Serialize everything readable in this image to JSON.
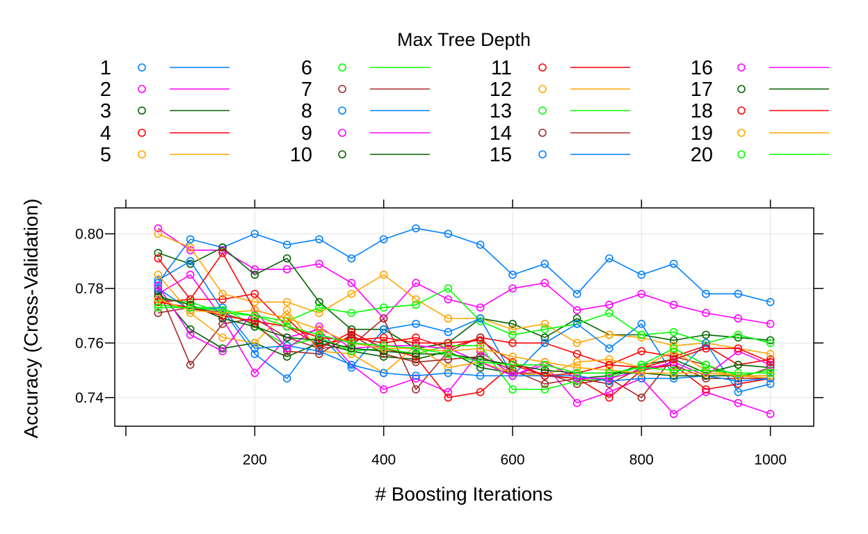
{
  "chart_data": {
    "type": "line",
    "legend_title": "Max Tree Depth",
    "xlabel": "# Boosting Iterations",
    "ylabel": "Accuracy (Cross-Validation)",
    "xlim": [
      0,
      1050
    ],
    "ylim": [
      0.7295,
      0.8095
    ],
    "xticks": [
      200,
      400,
      600,
      800,
      1000
    ],
    "yticks": [
      0.74,
      0.76,
      0.78,
      0.8
    ],
    "ytick_labels": [
      "0.74",
      "0.76",
      "0.78",
      "0.80"
    ],
    "grid": true,
    "legend_position": "top",
    "x": [
      50,
      100,
      150,
      200,
      250,
      300,
      350,
      400,
      450,
      500,
      550,
      600,
      650,
      700,
      750,
      800,
      850,
      900,
      950,
      1000
    ],
    "series": [
      {
        "name": "1",
        "color": "#0080ff",
        "values": [
          0.782,
          0.798,
          0.795,
          0.8,
          0.796,
          0.798,
          0.791,
          0.798,
          0.802,
          0.8,
          0.796,
          0.785,
          0.789,
          0.778,
          0.791,
          0.785,
          0.789,
          0.778,
          0.778,
          0.775
        ]
      },
      {
        "name": "2",
        "color": "#ff00ff",
        "values": [
          0.802,
          0.794,
          0.794,
          0.787,
          0.787,
          0.789,
          0.782,
          0.769,
          0.782,
          0.776,
          0.773,
          0.78,
          0.782,
          0.772,
          0.774,
          0.778,
          0.774,
          0.771,
          0.769,
          0.767
        ]
      },
      {
        "name": "3",
        "color": "#006400",
        "values": [
          0.793,
          0.789,
          0.795,
          0.785,
          0.791,
          0.775,
          0.765,
          0.765,
          0.758,
          0.76,
          0.769,
          0.767,
          0.762,
          0.769,
          0.763,
          0.763,
          0.761,
          0.763,
          0.762,
          0.761
        ]
      },
      {
        "name": "4",
        "color": "#ff0000",
        "values": [
          0.791,
          0.776,
          0.776,
          0.778,
          0.766,
          0.759,
          0.762,
          0.76,
          0.762,
          0.758,
          0.762,
          0.76,
          0.76,
          0.756,
          0.752,
          0.757,
          0.755,
          0.759,
          0.752,
          0.754
        ]
      },
      {
        "name": "5",
        "color": "#ffa500",
        "values": [
          0.8,
          0.795,
          0.778,
          0.775,
          0.775,
          0.771,
          0.778,
          0.785,
          0.776,
          0.769,
          0.769,
          0.765,
          0.767,
          0.76,
          0.763,
          0.762,
          0.759,
          0.76,
          0.758,
          0.756
        ]
      },
      {
        "name": "6",
        "color": "#00ff00",
        "values": [
          0.776,
          0.775,
          0.771,
          0.77,
          0.768,
          0.773,
          0.771,
          0.773,
          0.774,
          0.78,
          0.768,
          0.763,
          0.765,
          0.767,
          0.771,
          0.763,
          0.764,
          0.76,
          0.763,
          0.76
        ]
      },
      {
        "name": "7",
        "color": "#a52a2a",
        "values": [
          0.78,
          0.752,
          0.767,
          0.769,
          0.762,
          0.758,
          0.759,
          0.769,
          0.743,
          0.757,
          0.762,
          0.749,
          0.749,
          0.745,
          0.747,
          0.74,
          0.755,
          0.752,
          0.747,
          0.751
        ]
      },
      {
        "name": "8",
        "color": "#0080ff",
        "values": [
          0.783,
          0.79,
          0.772,
          0.756,
          0.747,
          0.763,
          0.751,
          0.765,
          0.767,
          0.764,
          0.769,
          0.748,
          0.76,
          0.767,
          0.758,
          0.767,
          0.748,
          0.76,
          0.742,
          0.745
        ]
      },
      {
        "name": "9",
        "color": "#ff00ff",
        "values": [
          0.778,
          0.785,
          0.769,
          0.749,
          0.762,
          0.765,
          0.752,
          0.743,
          0.747,
          0.742,
          0.757,
          0.748,
          0.752,
          0.738,
          0.742,
          0.747,
          0.734,
          0.742,
          0.738,
          0.734
        ]
      },
      {
        "name": "10",
        "color": "#006400",
        "values": [
          0.779,
          0.765,
          0.758,
          0.76,
          0.755,
          0.76,
          0.757,
          0.755,
          0.754,
          0.757,
          0.751,
          0.749,
          0.748,
          0.747,
          0.748,
          0.752,
          0.754,
          0.749,
          0.752,
          0.751
        ]
      },
      {
        "name": "11",
        "color": "#ff0000",
        "values": [
          0.775,
          0.776,
          0.793,
          0.772,
          0.769,
          0.758,
          0.764,
          0.758,
          0.755,
          0.74,
          0.742,
          0.752,
          0.748,
          0.747,
          0.74,
          0.75,
          0.752,
          0.743,
          0.745,
          0.747
        ]
      },
      {
        "name": "12",
        "color": "#ffa500",
        "values": [
          0.785,
          0.771,
          0.762,
          0.76,
          0.772,
          0.757,
          0.756,
          0.749,
          0.759,
          0.751,
          0.753,
          0.749,
          0.748,
          0.753,
          0.754,
          0.751,
          0.757,
          0.75,
          0.748,
          0.747
        ]
      },
      {
        "name": "13",
        "color": "#00ff00",
        "values": [
          0.774,
          0.773,
          0.773,
          0.766,
          0.759,
          0.762,
          0.757,
          0.758,
          0.756,
          0.759,
          0.759,
          0.743,
          0.743,
          0.746,
          0.747,
          0.752,
          0.758,
          0.752,
          0.748,
          0.75
        ]
      },
      {
        "name": "14",
        "color": "#a52a2a",
        "values": [
          0.771,
          0.773,
          0.771,
          0.767,
          0.757,
          0.756,
          0.763,
          0.756,
          0.753,
          0.754,
          0.755,
          0.75,
          0.745,
          0.747,
          0.745,
          0.751,
          0.752,
          0.747,
          0.747,
          0.747
        ]
      },
      {
        "name": "15",
        "color": "#0080ff",
        "values": [
          0.78,
          0.772,
          0.773,
          0.758,
          0.759,
          0.757,
          0.752,
          0.749,
          0.748,
          0.749,
          0.748,
          0.748,
          0.748,
          0.748,
          0.746,
          0.747,
          0.747,
          0.748,
          0.746,
          0.747
        ]
      },
      {
        "name": "16",
        "color": "#ff00ff",
        "values": [
          0.781,
          0.763,
          0.757,
          0.772,
          0.758,
          0.766,
          0.758,
          0.759,
          0.759,
          0.758,
          0.753,
          0.748,
          0.753,
          0.747,
          0.747,
          0.75,
          0.753,
          0.748,
          0.757,
          0.752
        ]
      },
      {
        "name": "17",
        "color": "#006400",
        "values": [
          0.777,
          0.774,
          0.769,
          0.766,
          0.762,
          0.761,
          0.758,
          0.757,
          0.756,
          0.756,
          0.754,
          0.752,
          0.75,
          0.749,
          0.749,
          0.749,
          0.748,
          0.748,
          0.748,
          0.748
        ]
      },
      {
        "name": "18",
        "color": "#ff0000",
        "values": [
          0.775,
          0.773,
          0.77,
          0.768,
          0.766,
          0.762,
          0.761,
          0.762,
          0.76,
          0.76,
          0.761,
          0.753,
          0.748,
          0.749,
          0.752,
          0.751,
          0.754,
          0.758,
          0.758,
          0.753
        ]
      },
      {
        "name": "19",
        "color": "#ffa500",
        "values": [
          0.776,
          0.772,
          0.771,
          0.772,
          0.769,
          0.765,
          0.76,
          0.758,
          0.758,
          0.757,
          0.758,
          0.755,
          0.753,
          0.751,
          0.75,
          0.749,
          0.749,
          0.749,
          0.748,
          0.748
        ]
      },
      {
        "name": "20",
        "color": "#00ff00",
        "values": [
          0.773,
          0.773,
          0.772,
          0.77,
          0.766,
          0.763,
          0.76,
          0.759,
          0.758,
          0.756,
          0.753,
          0.752,
          0.752,
          0.749,
          0.749,
          0.751,
          0.75,
          0.75,
          0.749,
          0.749
        ]
      }
    ]
  }
}
